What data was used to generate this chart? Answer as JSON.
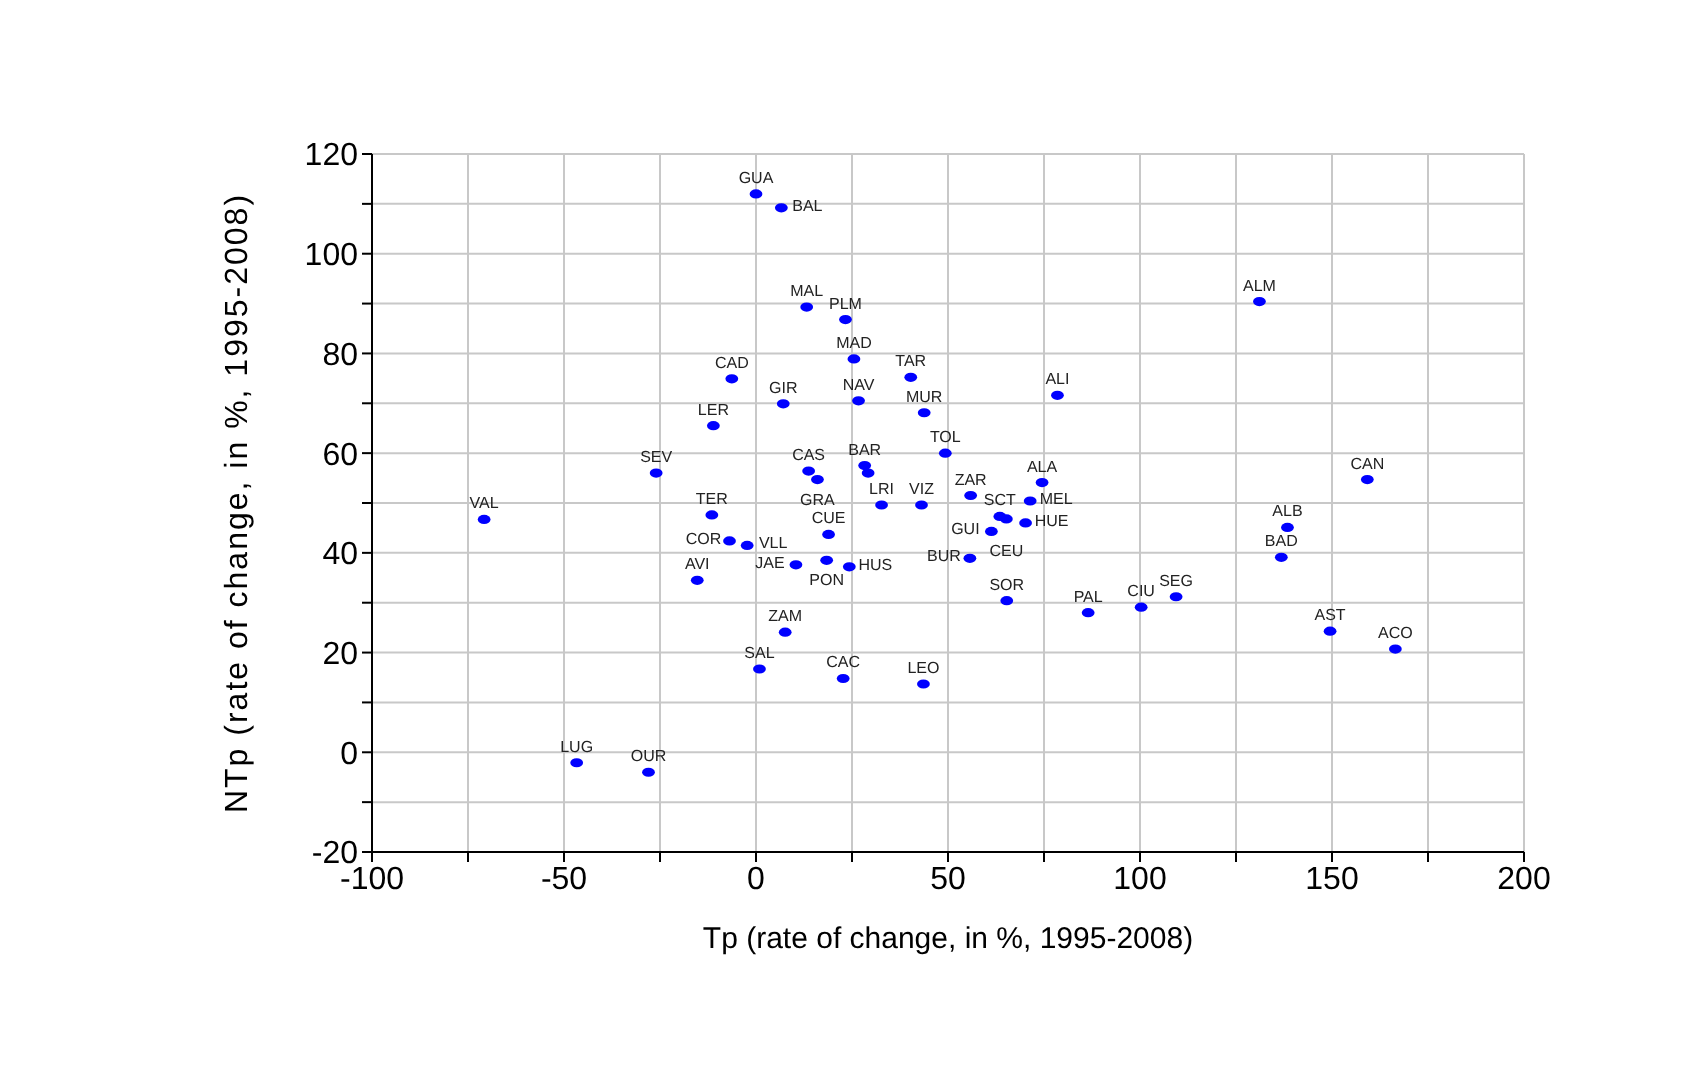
{
  "chart_data": {
    "type": "scatter",
    "xlabel": "Tp (rate of change, in %, 1995-2008)",
    "ylabel": "NTp (rate of change, in %, 1995-2008)",
    "xlim": [
      -100,
      200
    ],
    "xticks": [
      -100,
      {
        "value": -75,
        "label": null
      },
      -50,
      {
        "value": -25,
        "label": null
      },
      0,
      {
        "value": 25,
        "label": null
      },
      50,
      {
        "value": 75,
        "label": null
      },
      100,
      {
        "value": 125,
        "label": null
      },
      150,
      {
        "value": 175,
        "label": null
      },
      200
    ],
    "ylim": [
      -20,
      120
    ],
    "yticks": [
      -20,
      {
        "value": -10,
        "label": null
      },
      0,
      {
        "value": 10,
        "label": null
      },
      20,
      {
        "value": 30,
        "label": null
      },
      40,
      {
        "value": 50,
        "label": null
      },
      60,
      {
        "value": 70,
        "label": null
      },
      80,
      {
        "value": 90,
        "label": null
      },
      100,
      {
        "value": 110,
        "label": null
      },
      120
    ],
    "grid": true,
    "marker": "circle",
    "series": [
      {
        "color": "#0000ff",
        "x": [
          0,
          6.6,
          13.2,
          23.3,
          25.5,
          40.3,
          -6.3,
          7.1,
          26.7,
          43.8,
          78.5,
          -11.1,
          49.3,
          -26,
          13.7,
          16,
          28.3,
          29.2,
          32.7,
          43.1,
          55.9,
          74.5,
          71.4,
          63.5,
          65.2,
          70.2,
          61.3,
          55.7,
          65.3,
          86.5,
          100.3,
          109.4,
          131.1,
          159.2,
          138.4,
          136.8,
          149.5,
          166.5,
          43.6,
          22.7,
          0.9,
          7.6,
          -15.3,
          -11.5,
          -6.9,
          -2.3,
          18.9,
          10.4,
          18.4,
          24.3,
          -70.8,
          -46.7,
          -28
        ],
        "values": [
          112,
          109.2,
          89.3,
          86.8,
          78.9,
          75.2,
          74.9,
          69.9,
          70.5,
          68.1,
          71.6,
          65.5,
          60,
          56,
          56.4,
          54.7,
          57.5,
          56,
          49.6,
          49.6,
          51.5,
          54.1,
          50.4,
          47.3,
          46.8,
          46,
          44.3,
          38.9,
          30.4,
          28,
          29.1,
          31.2,
          90.4,
          54.7,
          45.1,
          39.1,
          24.3,
          20.7,
          13.7,
          14.8,
          16.7,
          24.1,
          34.5,
          47.6,
          42.4,
          41.5,
          43.7,
          37.6,
          38.5,
          37.2,
          46.7,
          -2.1,
          -4
        ]
      }
    ],
    "annotations": [
      {
        "text": "GUA",
        "x": 0,
        "y": 112
      },
      {
        "text": "BAL",
        "x": 6.6,
        "y": 109.2
      },
      {
        "text": "MAL",
        "x": 13.2,
        "y": 89.3
      },
      {
        "text": "PLM",
        "x": 23.3,
        "y": 86.8
      },
      {
        "text": "MAD",
        "x": 25.5,
        "y": 78.9
      },
      {
        "text": "TAR",
        "x": 40.3,
        "y": 75.2
      },
      {
        "text": "CAD",
        "x": -6.3,
        "y": 74.9
      },
      {
        "text": "GIR",
        "x": 7.1,
        "y": 69.9
      },
      {
        "text": "NAV",
        "x": 26.7,
        "y": 70.5
      },
      {
        "text": "MUR",
        "x": 43.8,
        "y": 68.1
      },
      {
        "text": "ALI",
        "x": 78.5,
        "y": 71.6
      },
      {
        "text": "LER",
        "x": -11.1,
        "y": 65.5
      },
      {
        "text": "TOL",
        "x": 49.3,
        "y": 60
      },
      {
        "text": "SEV",
        "x": -26,
        "y": 56
      },
      {
        "text": "CAS",
        "x": 13.7,
        "y": 56.4
      },
      {
        "text": "GRA",
        "x": 16,
        "y": 54.7
      },
      {
        "text": "BAR",
        "x": 28.3,
        "y": 57.5
      },
      {
        "text": "LRI",
        "x": 32.7,
        "y": 49.6
      },
      {
        "text": "VIZ",
        "x": 43.1,
        "y": 49.6
      },
      {
        "text": "ZAR",
        "x": 55.9,
        "y": 51.5
      },
      {
        "text": "ALA",
        "x": 74.5,
        "y": 54.1
      },
      {
        "text": "MEL",
        "x": 71.4,
        "y": 50.4
      },
      {
        "text": "SCT",
        "x": 63.5,
        "y": 47.3
      },
      {
        "text": "CEU",
        "x": 65.2,
        "y": 46.8
      },
      {
        "text": "HUE",
        "x": 70.2,
        "y": 46
      },
      {
        "text": "GUI",
        "x": 61.3,
        "y": 44.3
      },
      {
        "text": "BUR",
        "x": 55.7,
        "y": 38.9
      },
      {
        "text": "SOR",
        "x": 65.3,
        "y": 30.4
      },
      {
        "text": "PAL",
        "x": 86.5,
        "y": 28
      },
      {
        "text": "CIU",
        "x": 100.3,
        "y": 29.1
      },
      {
        "text": "SEG",
        "x": 109.4,
        "y": 31.2
      },
      {
        "text": "ALM",
        "x": 131.1,
        "y": 90.4
      },
      {
        "text": "CAN",
        "x": 159.2,
        "y": 54.7
      },
      {
        "text": "ALB",
        "x": 138.4,
        "y": 45.1
      },
      {
        "text": "BAD",
        "x": 136.8,
        "y": 39.1
      },
      {
        "text": "AST",
        "x": 149.5,
        "y": 24.3
      },
      {
        "text": "ACO",
        "x": 166.5,
        "y": 20.7
      },
      {
        "text": "LEO",
        "x": 43.6,
        "y": 13.7
      },
      {
        "text": "CAC",
        "x": 22.7,
        "y": 14.8
      },
      {
        "text": "SAL",
        "x": 0.9,
        "y": 16.7
      },
      {
        "text": "ZAM",
        "x": 7.6,
        "y": 24.1
      },
      {
        "text": "AVI",
        "x": -15.3,
        "y": 34.5
      },
      {
        "text": "TER",
        "x": -11.5,
        "y": 47.6
      },
      {
        "text": "COR",
        "x": -6.9,
        "y": 42.4
      },
      {
        "text": "VLL",
        "x": -2.3,
        "y": 41.5
      },
      {
        "text": "CUE",
        "x": 18.9,
        "y": 43.7
      },
      {
        "text": "JAE",
        "x": 10.4,
        "y": 37.6
      },
      {
        "text": "PON",
        "x": 18.4,
        "y": 38.5
      },
      {
        "text": "HUS",
        "x": 24.3,
        "y": 37.2
      },
      {
        "text": "VAL",
        "x": -70.8,
        "y": 46.7
      },
      {
        "text": "LUG",
        "x": -46.7,
        "y": -2.1
      },
      {
        "text": "OUR",
        "x": -28,
        "y": -4
      }
    ]
  }
}
